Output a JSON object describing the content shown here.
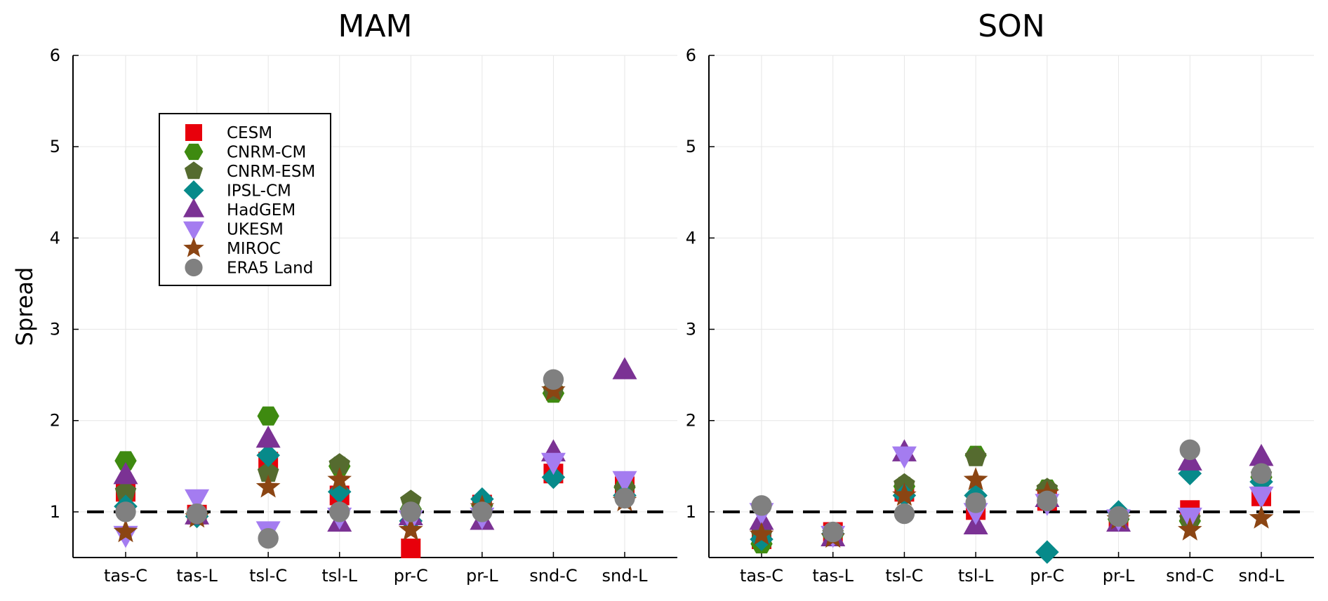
{
  "ylabel": "Spread",
  "colors": {
    "CESM": "#e8000b",
    "CNRM-CM": "#3e8a10",
    "CNRM-ESM": "#556b2f",
    "IPSL-CM": "#078a8a",
    "HadGEM": "#7b3294",
    "UKESM": "#a47cf0",
    "MIROC": "#8b4513",
    "ERA5 Land": "#808080"
  },
  "markers": {
    "CESM": "square",
    "CNRM-CM": "hexagon",
    "CNRM-ESM": "pentagon",
    "IPSL-CM": "diamond",
    "HadGEM": "triangle-up",
    "UKESM": "triangle-down",
    "MIROC": "star",
    "ERA5 Land": "circle"
  },
  "legend": {
    "placement": "upper-left of MAM panel",
    "entries": [
      "CESM",
      "CNRM-CM",
      "CNRM-ESM",
      "IPSL-CM",
      "HadGEM",
      "UKESM",
      "MIROC",
      "ERA5 Land"
    ]
  },
  "chart_data": [
    {
      "type": "scatter",
      "title": "MAM",
      "ylabel": "Spread",
      "categories": [
        "tas-C",
        "tas-L",
        "tsl-C",
        "tsl-L",
        "pr-C",
        "pr-L",
        "snd-C",
        "snd-L"
      ],
      "ylim": [
        0.5,
        6
      ],
      "yticks": [
        1,
        2,
        3,
        4,
        5,
        6
      ],
      "grid": true,
      "reference_line": {
        "y": 1,
        "style": "dashed"
      },
      "series": [
        {
          "name": "CESM",
          "values": [
            1.22,
            0.97,
            1.55,
            1.18,
            0.6,
            1.08,
            1.42,
            1.28
          ]
        },
        {
          "name": "CNRM-CM",
          "values": [
            1.56,
            0.96,
            2.05,
            1.5,
            1.03,
            1.07,
            2.3,
            1.27
          ]
        },
        {
          "name": "CNRM-ESM",
          "values": [
            1.22,
            0.96,
            1.43,
            1.52,
            1.12,
            1.05,
            2.33,
            1.25
          ]
        },
        {
          "name": "IPSL-CM",
          "values": [
            1.06,
            0.95,
            1.62,
            1.22,
            0.9,
            1.14,
            1.38,
            1.18
          ]
        },
        {
          "name": "HadGEM",
          "values": [
            1.4,
            0.96,
            1.8,
            0.88,
            0.95,
            0.9,
            1.65,
            2.55
          ]
        },
        {
          "name": "UKESM",
          "values": [
            0.75,
            1.15,
            0.8,
            0.95,
            0.92,
            0.95,
            1.55,
            1.35
          ]
        },
        {
          "name": "MIROC",
          "values": [
            0.78,
            0.94,
            1.27,
            1.35,
            0.8,
            1.05,
            2.33,
            1.12
          ]
        },
        {
          "name": "ERA5 Land",
          "values": [
            1.0,
            0.98,
            0.71,
            1.0,
            1.0,
            1.0,
            2.45,
            1.15
          ]
        }
      ]
    },
    {
      "type": "scatter",
      "title": "SON",
      "categories": [
        "tas-C",
        "tas-L",
        "tsl-C",
        "tsl-L",
        "pr-C",
        "pr-L",
        "snd-C",
        "snd-L"
      ],
      "ylim": [
        0.5,
        6
      ],
      "yticks": [
        1,
        2,
        3,
        4,
        5,
        6
      ],
      "grid": true,
      "reference_line": {
        "y": 1,
        "style": "dashed"
      },
      "series": [
        {
          "name": "CESM",
          "values": [
            0.7,
            0.78,
            1.22,
            1.02,
            1.12,
            0.9,
            1.02,
            1.17
          ]
        },
        {
          "name": "CNRM-CM",
          "values": [
            0.65,
            0.75,
            1.28,
            1.62,
            1.25,
            0.92,
            0.9,
            1.38
          ]
        },
        {
          "name": "CNRM-ESM",
          "values": [
            0.75,
            0.76,
            1.3,
            1.6,
            1.25,
            0.92,
            0.92,
            1.4
          ]
        },
        {
          "name": "IPSL-CM",
          "values": [
            0.7,
            0.76,
            1.18,
            1.18,
            0.56,
            1.0,
            1.42,
            1.33
          ]
        },
        {
          "name": "HadGEM",
          "values": [
            0.9,
            0.72,
            1.65,
            0.85,
            1.15,
            0.88,
            1.55,
            1.6
          ]
        },
        {
          "name": "UKESM",
          "values": [
            1.0,
            0.75,
            1.62,
            1.0,
            1.1,
            0.93,
            0.95,
            1.18
          ]
        },
        {
          "name": "MIROC",
          "values": [
            0.75,
            0.72,
            1.18,
            1.35,
            1.2,
            0.92,
            0.8,
            0.93
          ]
        },
        {
          "name": "ERA5 Land",
          "values": [
            1.07,
            0.78,
            0.98,
            1.1,
            1.12,
            0.95,
            1.68,
            1.42
          ]
        }
      ]
    }
  ]
}
